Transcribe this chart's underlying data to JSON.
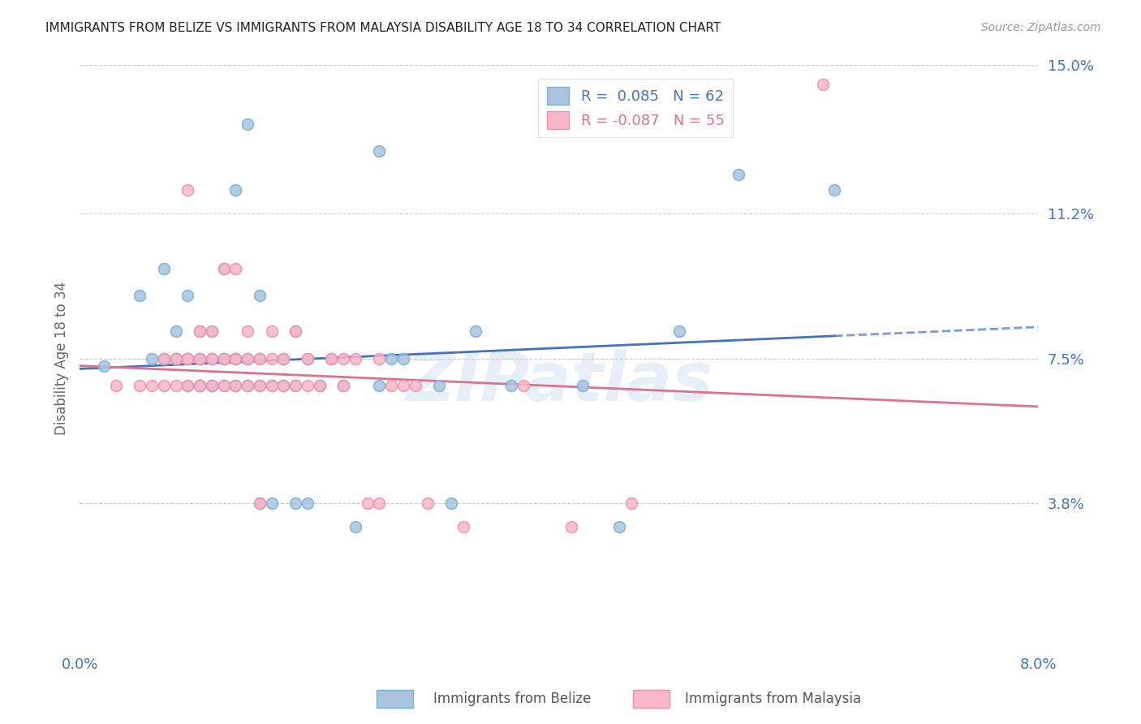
{
  "title": "IMMIGRANTS FROM BELIZE VS IMMIGRANTS FROM MALAYSIA DISABILITY AGE 18 TO 34 CORRELATION CHART",
  "source": "Source: ZipAtlas.com",
  "ylabel": "Disability Age 18 to 34",
  "xlim": [
    0.0,
    0.08
  ],
  "ylim": [
    0.0,
    0.15
  ],
  "ytick_positions": [
    0.0,
    0.038,
    0.075,
    0.112,
    0.15
  ],
  "yticklabels": [
    "",
    "3.8%",
    "7.5%",
    "11.2%",
    "15.0%"
  ],
  "belize_R": 0.085,
  "belize_N": 62,
  "malaysia_R": -0.087,
  "malaysia_N": 55,
  "belize_color": "#aac4e0",
  "belize_edge": "#7aafd4",
  "malaysia_color": "#f9b8c8",
  "malaysia_edge": "#f090aa",
  "belize_line_color": "#4472c4",
  "malaysia_line_color": "#e07090",
  "dashed_line_color": "#aac4e0",
  "watermark": "ZIPatlas",
  "belize_x": [
    0.002,
    0.005,
    0.006,
    0.007,
    0.007,
    0.008,
    0.008,
    0.008,
    0.009,
    0.009,
    0.009,
    0.009,
    0.01,
    0.01,
    0.01,
    0.01,
    0.01,
    0.011,
    0.011,
    0.011,
    0.011,
    0.012,
    0.012,
    0.012,
    0.012,
    0.013,
    0.013,
    0.013,
    0.013,
    0.014,
    0.014,
    0.014,
    0.015,
    0.015,
    0.015,
    0.015,
    0.016,
    0.016,
    0.017,
    0.017,
    0.018,
    0.018,
    0.018,
    0.019,
    0.019,
    0.02,
    0.021,
    0.022,
    0.023,
    0.025,
    0.025,
    0.026,
    0.027,
    0.03,
    0.031,
    0.033,
    0.036,
    0.042,
    0.045,
    0.05,
    0.055,
    0.063
  ],
  "belize_y": [
    0.073,
    0.091,
    0.075,
    0.075,
    0.098,
    0.075,
    0.075,
    0.082,
    0.068,
    0.075,
    0.075,
    0.091,
    0.068,
    0.068,
    0.075,
    0.075,
    0.082,
    0.068,
    0.068,
    0.075,
    0.082,
    0.068,
    0.075,
    0.075,
    0.098,
    0.068,
    0.075,
    0.075,
    0.118,
    0.068,
    0.075,
    0.135,
    0.038,
    0.068,
    0.075,
    0.091,
    0.038,
    0.068,
    0.068,
    0.075,
    0.038,
    0.068,
    0.082,
    0.038,
    0.075,
    0.068,
    0.075,
    0.068,
    0.032,
    0.128,
    0.068,
    0.075,
    0.075,
    0.068,
    0.038,
    0.082,
    0.068,
    0.068,
    0.032,
    0.082,
    0.122,
    0.118
  ],
  "malaysia_x": [
    0.003,
    0.005,
    0.006,
    0.007,
    0.007,
    0.008,
    0.008,
    0.009,
    0.009,
    0.009,
    0.009,
    0.01,
    0.01,
    0.01,
    0.011,
    0.011,
    0.011,
    0.012,
    0.012,
    0.012,
    0.013,
    0.013,
    0.013,
    0.014,
    0.014,
    0.014,
    0.015,
    0.015,
    0.015,
    0.016,
    0.016,
    0.016,
    0.017,
    0.017,
    0.018,
    0.018,
    0.019,
    0.019,
    0.02,
    0.021,
    0.022,
    0.022,
    0.023,
    0.024,
    0.025,
    0.025,
    0.026,
    0.027,
    0.028,
    0.029,
    0.032,
    0.037,
    0.041,
    0.046,
    0.062
  ],
  "malaysia_y": [
    0.068,
    0.068,
    0.068,
    0.068,
    0.075,
    0.068,
    0.075,
    0.068,
    0.075,
    0.075,
    0.118,
    0.068,
    0.075,
    0.082,
    0.068,
    0.075,
    0.082,
    0.068,
    0.075,
    0.098,
    0.068,
    0.075,
    0.098,
    0.068,
    0.075,
    0.082,
    0.038,
    0.068,
    0.075,
    0.068,
    0.075,
    0.082,
    0.068,
    0.075,
    0.068,
    0.082,
    0.068,
    0.075,
    0.068,
    0.075,
    0.068,
    0.075,
    0.075,
    0.038,
    0.038,
    0.075,
    0.068,
    0.068,
    0.068,
    0.038,
    0.032,
    0.068,
    0.032,
    0.038,
    0.145
  ]
}
